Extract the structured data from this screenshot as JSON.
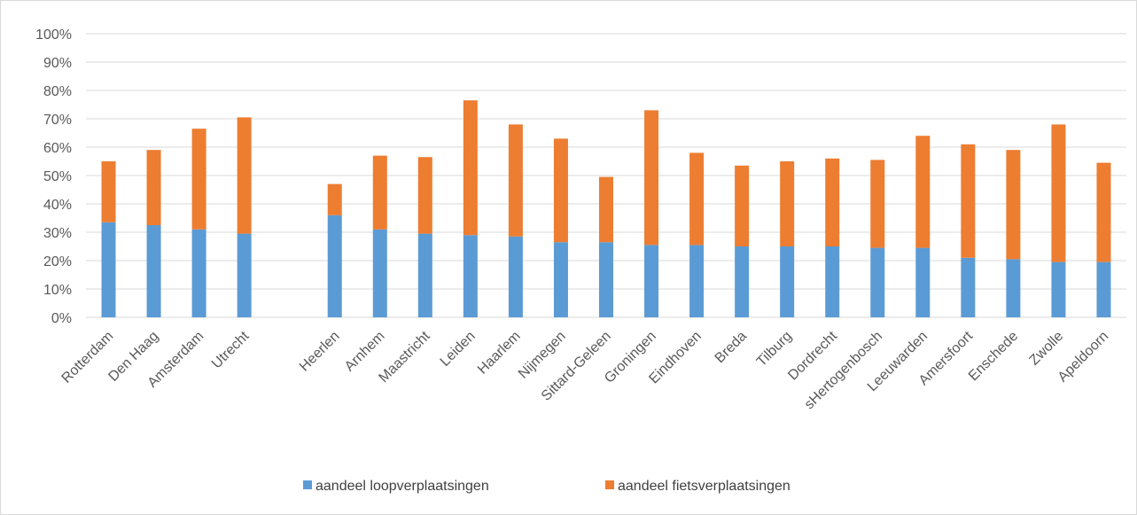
{
  "chart_data": {
    "type": "bar",
    "stacked": true,
    "categories": [
      "Rotterdam",
      "Den Haag",
      "Amsterdam",
      "Utrecht",
      "",
      "Heerlen",
      "Arnhem",
      "Maastricht",
      "Leiden",
      "Haarlem",
      "Nijmegen",
      "Sittard-Geleen",
      "Groningen",
      "Eindhoven",
      "Breda",
      "Tilburg",
      "Dordrecht",
      "sHertogenbosch",
      "Leeuwarden",
      "Amersfoort",
      "Enschede",
      "Zwolle",
      "Apeldoorn"
    ],
    "series": [
      {
        "name": "aandeel loopverplaatsingen",
        "color": "#5b9bd5",
        "values": [
          33.5,
          32.5,
          31,
          29.5,
          null,
          36,
          31,
          29.5,
          29,
          28.5,
          26.5,
          26.5,
          25.5,
          25.5,
          25,
          25,
          25,
          24.5,
          24.5,
          21,
          20.5,
          19.5,
          19.5
        ]
      },
      {
        "name": "aandeel fietsverplaatsingen",
        "color": "#ed7d31",
        "values": [
          21.5,
          26.5,
          35.5,
          41,
          null,
          11,
          26,
          27,
          47.5,
          39.5,
          36.5,
          23,
          47.5,
          32.5,
          28.5,
          30,
          31,
          31,
          39.5,
          40,
          38.5,
          48.5,
          35
        ]
      }
    ],
    "y_ticks": [
      "0%",
      "10%",
      "20%",
      "30%",
      "40%",
      "50%",
      "60%",
      "70%",
      "80%",
      "90%",
      "100%"
    ],
    "ylim": [
      0,
      100
    ],
    "y_unit": "%",
    "grid": true,
    "gridline_color": "#d9d9d9",
    "legend_position": "bottom"
  }
}
